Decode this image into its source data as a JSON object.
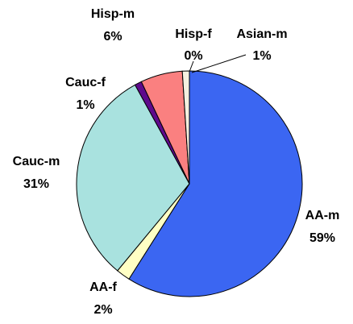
{
  "chart_data": {
    "type": "pie",
    "categories": [
      "AA-m",
      "AA-f",
      "Cauc-m",
      "Cauc-f",
      "Hisp-m",
      "Hisp-f",
      "Asian-m"
    ],
    "values": [
      59,
      2,
      31,
      1,
      6,
      0,
      1
    ],
    "value_labels": [
      "59%",
      "2%",
      "31%",
      "1%",
      "6%",
      "0%",
      "1%"
    ],
    "colors": [
      "#3b66f2",
      "#ffffc4",
      "#a9e2df",
      "#5e0a8c",
      "#fa8080",
      "#ffffff",
      "#f5f0e0"
    ]
  }
}
